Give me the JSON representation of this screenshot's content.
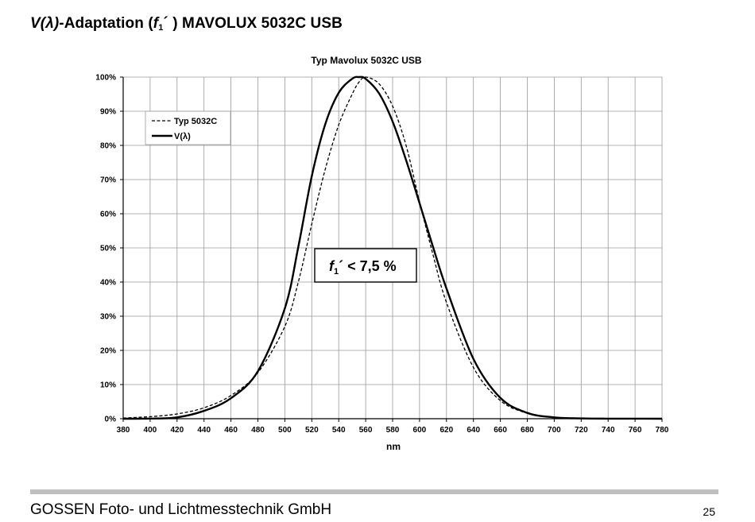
{
  "page": {
    "title_vlambda": "V(λ)",
    "title_mid": "-Adaptation (",
    "title_f": "f",
    "title_sub": "1",
    "title_rest": "´ ) MAVOLUX 5032C USB"
  },
  "footer": {
    "company": "GOSSEN Foto- und Lichtmesstechnik GmbH",
    "page_number": "25"
  },
  "chart_data": {
    "type": "line",
    "title": "Typ Mavolux 5032C USB",
    "xlabel": "nm",
    "ylabel": "",
    "xlim": [
      380,
      780
    ],
    "ylim": [
      0,
      100
    ],
    "x_ticks": [
      380,
      400,
      420,
      440,
      460,
      480,
      500,
      520,
      540,
      560,
      580,
      600,
      620,
      640,
      660,
      680,
      700,
      720,
      740,
      760,
      780
    ],
    "y_ticks": [
      "0%",
      "10%",
      "20%",
      "30%",
      "40%",
      "50%",
      "60%",
      "70%",
      "80%",
      "90%",
      "100%"
    ],
    "grid": true,
    "legend_position": "top-left",
    "annotation": {
      "f": "f",
      "sub": "1",
      "text": "´ < 7,5 %"
    },
    "x": [
      380,
      400,
      420,
      440,
      460,
      480,
      500,
      510,
      520,
      530,
      540,
      550,
      555,
      560,
      570,
      580,
      590,
      600,
      610,
      620,
      640,
      660,
      680,
      700,
      720,
      740,
      760,
      780
    ],
    "series": [
      {
        "name": "Typ 5032C",
        "style": "dashed",
        "values": [
          0.2,
          0.6,
          1.4,
          3.2,
          6.8,
          13.5,
          27,
          40,
          57,
          73,
          86,
          95,
          98.5,
          100,
          98,
          91.5,
          80,
          63.5,
          48,
          34,
          15,
          5.3,
          1.6,
          0.4,
          0.1,
          0.03,
          0.01,
          0.0
        ]
      },
      {
        "name": "V(λ)",
        "style": "solid",
        "values": [
          0.0,
          0.04,
          0.4,
          2.3,
          6.0,
          13.9,
          32.3,
          50.3,
          71.0,
          86.2,
          95.4,
          99.5,
          100,
          99.5,
          95.2,
          87.0,
          75.7,
          63.1,
          50.3,
          38.1,
          17.5,
          6.1,
          1.7,
          0.4,
          0.1,
          0.02,
          0.01,
          0.0
        ]
      }
    ]
  }
}
